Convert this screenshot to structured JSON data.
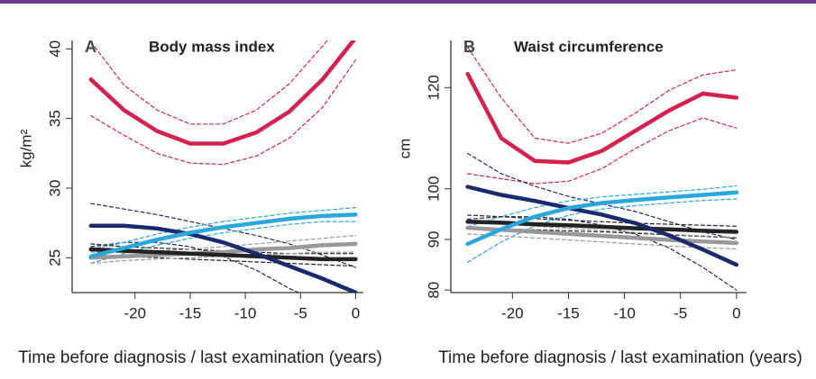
{
  "chart_data": [
    {
      "type": "line",
      "panel": "A",
      "title": "Body mass index",
      "ylabel": "kg/m²",
      "xlabel": "Time before diagnosis / last examination (years)",
      "x": [
        -24,
        -21,
        -18,
        -15,
        -12,
        -9,
        -6,
        -3,
        0
      ],
      "xlim": [
        -25.7,
        0.7
      ],
      "xticks": [
        -20,
        -15,
        -10,
        -5,
        0
      ],
      "ylim": [
        22.5,
        40.6
      ],
      "yticks": [
        25,
        30,
        35,
        40
      ],
      "series": [
        {
          "color": "#d6214f",
          "dash": true,
          "values": [
            40.5,
            37.4,
            35.6,
            34.6,
            34.6,
            35.6,
            37.5,
            40.2,
            43
          ]
        },
        {
          "color": "#d6214f",
          "dash": true,
          "values": [
            35.2,
            33.8,
            32.5,
            31.8,
            31.7,
            32.3,
            33.6,
            35.8,
            39.2
          ]
        },
        {
          "color": "#1a2a6c",
          "dash": true,
          "values": [
            28.9,
            28.5,
            28.1,
            27.6,
            27.1,
            26.6,
            26.0,
            25.2,
            24.3
          ]
        },
        {
          "color": "#1a2a6c",
          "dash": true,
          "values": [
            25.8,
            26.1,
            26.1,
            25.8,
            25.1,
            24.1,
            22.8,
            21.7,
            20.7
          ]
        },
        {
          "color": "#2aa7dc",
          "dash": true,
          "values": [
            25.6,
            26.1,
            26.7,
            27.2,
            27.6,
            27.9,
            28.2,
            28.4,
            28.6
          ]
        },
        {
          "color": "#2aa7dc",
          "dash": true,
          "values": [
            24.6,
            25.3,
            25.9,
            26.4,
            26.8,
            27.1,
            27.4,
            27.6,
            27.6
          ]
        },
        {
          "color": "#222222",
          "dash": true,
          "values": [
            26.0,
            25.8,
            25.7,
            25.6,
            25.5,
            25.4,
            25.3,
            25.3,
            25.3
          ]
        },
        {
          "color": "#222222",
          "dash": true,
          "values": [
            25.2,
            25.1,
            25.0,
            24.9,
            24.8,
            24.7,
            24.6,
            24.5,
            24.4
          ]
        },
        {
          "color": "#999999",
          "dash": true,
          "values": [
            25.4,
            25.4,
            25.5,
            25.6,
            25.8,
            26.0,
            26.2,
            26.4,
            26.6
          ]
        },
        {
          "color": "#999999",
          "dash": true,
          "values": [
            24.6,
            24.8,
            24.9,
            25.0,
            25.1,
            25.2,
            25.3,
            25.4,
            25.4
          ]
        },
        {
          "color": "#999999",
          "dash": false,
          "values": [
            25.0,
            25.1,
            25.2,
            25.3,
            25.4,
            25.6,
            25.7,
            25.9,
            26.0
          ]
        },
        {
          "color": "#222222",
          "dash": false,
          "values": [
            25.6,
            25.5,
            25.4,
            25.3,
            25.2,
            25.1,
            25.0,
            24.9,
            24.9
          ]
        },
        {
          "color": "#1a2a6c",
          "dash": false,
          "values": [
            27.3,
            27.3,
            27.1,
            26.7,
            26.1,
            25.3,
            24.4,
            23.5,
            22.5
          ]
        },
        {
          "color": "#2aa7dc",
          "dash": false,
          "values": [
            25.1,
            25.7,
            26.3,
            26.8,
            27.2,
            27.5,
            27.8,
            28.0,
            28.1
          ]
        },
        {
          "color": "#d6214f",
          "dash": false,
          "values": [
            37.8,
            35.6,
            34.1,
            33.2,
            33.2,
            34.0,
            35.5,
            37.8,
            40.8
          ]
        }
      ]
    },
    {
      "type": "line",
      "panel": "B",
      "title": "Waist circumference",
      "ylabel": "cm",
      "xlabel": "Time before diagnosis / last examination (years)",
      "x": [
        -24,
        -21,
        -18,
        -15,
        -12,
        -9,
        -6,
        -3,
        0
      ],
      "xlim": [
        -25.5,
        0.9
      ],
      "xticks": [
        -20,
        -15,
        -10,
        -5,
        0
      ],
      "ylim": [
        79.5,
        129.3
      ],
      "yticks": [
        80,
        90,
        100,
        120
      ],
      "series": [
        {
          "color": "#d6214f",
          "dash": true,
          "values": [
            128,
            118,
            110,
            109,
            111,
            115,
            119.5,
            122.5,
            123.5
          ]
        },
        {
          "color": "#d6214f",
          "dash": true,
          "values": [
            103,
            102,
            101,
            101.5,
            104,
            108,
            111.5,
            114,
            112
          ]
        },
        {
          "color": "#1a2a6c",
          "dash": true,
          "values": [
            107,
            103,
            100.5,
            98.5,
            97,
            95.5,
            93.5,
            91.5,
            90
          ]
        },
        {
          "color": "#1a2a6c",
          "dash": true,
          "values": [
            94,
            94.5,
            94.5,
            94,
            92.8,
            91,
            88.3,
            84.5,
            80
          ]
        },
        {
          "color": "#2aa7dc",
          "dash": true,
          "values": [
            92.5,
            94.5,
            96.3,
            97.6,
            98.4,
            98.9,
            99.4,
            99.9,
            100.6
          ]
        },
        {
          "color": "#2aa7dc",
          "dash": true,
          "values": [
            85.5,
            89.5,
            92.7,
            94.8,
            96,
            96.7,
            97.2,
            97.7,
            98
          ]
        },
        {
          "color": "#222222",
          "dash": true,
          "values": [
            94.8,
            94.5,
            94.1,
            93.8,
            93.5,
            93.2,
            93,
            92.8,
            92.6
          ]
        },
        {
          "color": "#222222",
          "dash": true,
          "values": [
            92.2,
            92.1,
            91.9,
            91.7,
            91.5,
            91.2,
            90.9,
            90.6,
            90.3
          ]
        },
        {
          "color": "#999999",
          "dash": true,
          "values": [
            93.5,
            93.1,
            92.6,
            92.2,
            91.8,
            91.4,
            91,
            90.7,
            90.4
          ]
        },
        {
          "color": "#999999",
          "dash": true,
          "values": [
            91.1,
            90.7,
            90.3,
            89.9,
            89.5,
            89.1,
            88.7,
            88.4,
            88.1
          ]
        },
        {
          "color": "#999999",
          "dash": false,
          "values": [
            92.3,
            91.9,
            91.5,
            91.1,
            90.7,
            90.3,
            89.9,
            89.6,
            89.3
          ]
        },
        {
          "color": "#222222",
          "dash": false,
          "values": [
            93.5,
            93.3,
            93.0,
            92.8,
            92.5,
            92.2,
            92.0,
            91.7,
            91.5
          ]
        },
        {
          "color": "#1a2a6c",
          "dash": false,
          "values": [
            100.4,
            98.8,
            97.6,
            96.2,
            94.9,
            93.2,
            90.8,
            88,
            85
          ]
        },
        {
          "color": "#2aa7dc",
          "dash": false,
          "values": [
            89.1,
            92,
            94.5,
            96.2,
            97.2,
            97.8,
            98.3,
            98.8,
            99.3
          ]
        },
        {
          "color": "#d6214f",
          "dash": false,
          "values": [
            122.7,
            110,
            105.5,
            105.2,
            107.5,
            111.5,
            115.5,
            118.8,
            118
          ]
        }
      ]
    }
  ]
}
